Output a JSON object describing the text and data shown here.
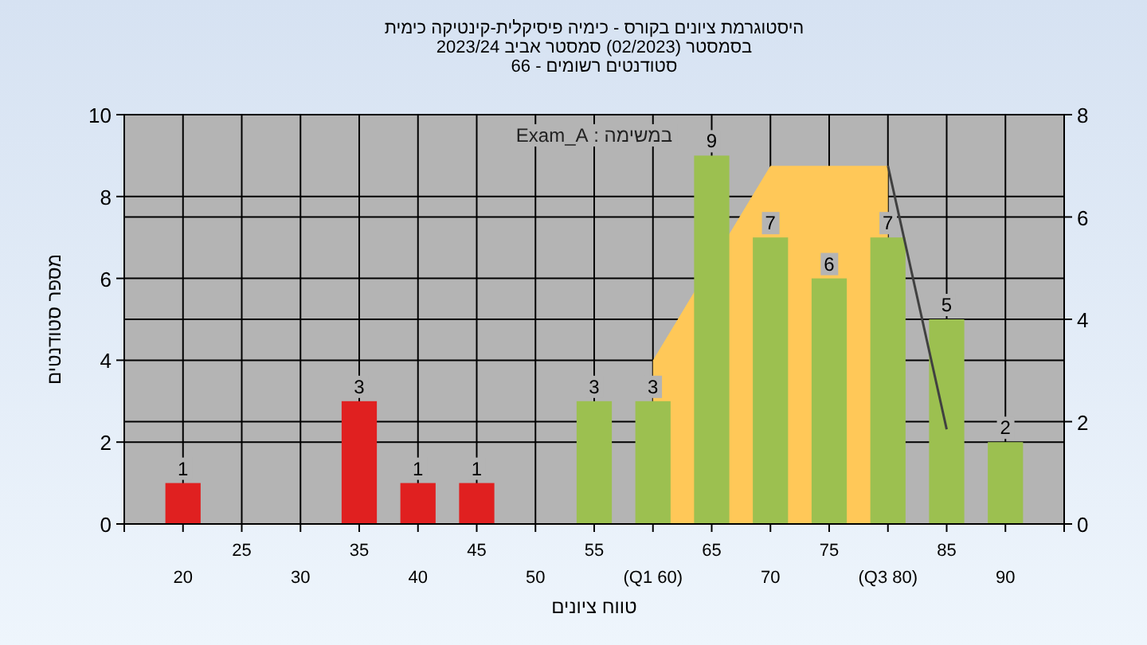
{
  "chart_data": {
    "type": "bar",
    "title": "היסטוגרמת ציונים בקורס - כימיה פיסיקלית-קינטיקה כימית",
    "subtitle": "בסמסטר  (02/2023)  סמסטר אביב 2023/24\nסטודנטים רשומים - 66",
    "xlabel": "טווח ציונים",
    "ylabel": "מספר סטודנטים",
    "annotations": [
      "במשימה : Exam_A"
    ],
    "categories": [
      "20",
      "25",
      "30",
      "35",
      "40",
      "45",
      "50",
      "55",
      "(Q1 60)",
      "65",
      "70",
      "75",
      "(Q3 80)",
      "85",
      "90"
    ],
    "series": [
      {
        "type": "area",
        "axis": "y2",
        "color": "#ffc858",
        "values": [
          null,
          null,
          null,
          null,
          null,
          null,
          null,
          null,
          3.2,
          null,
          7.0,
          7.0,
          7.0,
          null,
          null
        ]
      },
      {
        "type": "line",
        "axis": "y2",
        "color": "#404040",
        "values": [
          null,
          null,
          null,
          null,
          null,
          null,
          null,
          null,
          null,
          null,
          null,
          null,
          7.0,
          1.85,
          null
        ]
      },
      {
        "values": [
          1,
          0,
          0,
          3,
          1,
          1,
          0,
          3,
          3,
          9,
          7,
          6,
          7,
          5,
          2
        ],
        "colors": [
          "#e02020",
          "#e02020",
          "#e02020",
          "#e02020",
          "#e02020",
          "#e02020",
          "#e02020",
          "#9cc050",
          "#9cc050",
          "#9cc050",
          "#9cc050",
          "#9cc050",
          "#9cc050",
          "#9cc050",
          "#9cc050"
        ],
        "value_labels": [
          "1",
          null,
          null,
          "3",
          "1",
          "1",
          null,
          "3",
          "3",
          "9",
          "7",
          "6",
          "7",
          "5",
          "2"
        ]
      }
    ],
    "ylim": [
      0,
      10
    ],
    "yticks": [
      0,
      2,
      4,
      6,
      8,
      10
    ],
    "y2lim": [
      0,
      8
    ],
    "y2ticks": [
      0,
      2,
      4,
      6,
      8
    ],
    "grid": true
  }
}
